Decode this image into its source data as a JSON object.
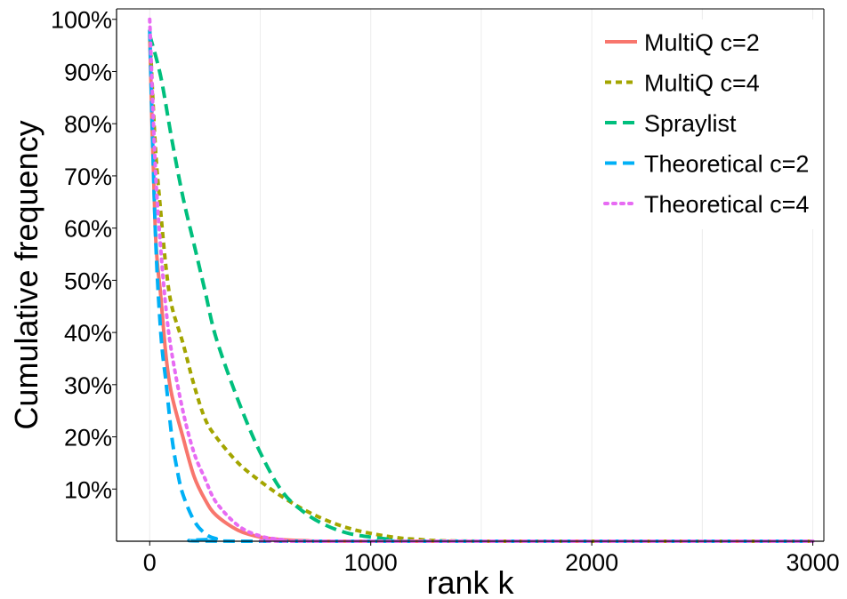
{
  "chart_data": {
    "type": "line",
    "title": "",
    "xlabel": "rank k",
    "ylabel": "Cumulative frequency",
    "xlim": [
      -150,
      3050
    ],
    "ylim": [
      0,
      1.02
    ],
    "xticks": [
      0,
      1000,
      2000,
      3000
    ],
    "xtick_labels": [
      "0",
      "1000",
      "2000",
      "3000"
    ],
    "yticks": [
      0.1,
      0.2,
      0.3,
      0.4,
      0.5,
      0.6,
      0.7,
      0.8,
      0.9,
      1.0
    ],
    "ytick_labels": [
      "10%",
      "20%",
      "30%",
      "40%",
      "50%",
      "60%",
      "70%",
      "80%",
      "90%",
      "100%"
    ],
    "grid": true,
    "legend_position": "top-right",
    "series": [
      {
        "name": "MultiQ c=2",
        "color": "#F8766D",
        "dash": "solid",
        "x": [
          0,
          25,
          50,
          75,
          100,
          150,
          200,
          250,
          300,
          400,
          500,
          600,
          700,
          1000,
          3000
        ],
        "y": [
          0.97,
          0.6,
          0.47,
          0.35,
          0.28,
          0.2,
          0.125,
          0.08,
          0.05,
          0.021,
          0.008,
          0.003,
          0.001,
          0.0,
          0.0
        ]
      },
      {
        "name": "MultiQ c=4",
        "color": "#A3A500",
        "dash": "dash-short",
        "x": [
          0,
          25,
          50,
          75,
          100,
          150,
          200,
          250,
          300,
          400,
          500,
          600,
          700,
          800,
          900,
          1000,
          1100,
          1200,
          1500,
          3000
        ],
        "y": [
          0.98,
          0.76,
          0.63,
          0.52,
          0.45,
          0.38,
          0.3,
          0.235,
          0.2,
          0.15,
          0.115,
          0.085,
          0.06,
          0.04,
          0.025,
          0.015,
          0.008,
          0.004,
          0.0,
          0.0
        ]
      },
      {
        "name": "Spraylist",
        "color": "#00BF7D",
        "dash": "dash-long",
        "x": [
          0,
          50,
          100,
          150,
          200,
          250,
          300,
          400,
          500,
          600,
          700,
          800,
          900,
          1000,
          1100,
          1200,
          3000
        ],
        "y": [
          0.97,
          0.89,
          0.77,
          0.66,
          0.57,
          0.48,
          0.39,
          0.27,
          0.17,
          0.095,
          0.055,
          0.03,
          0.015,
          0.008,
          0.003,
          0.0,
          0.0
        ]
      },
      {
        "name": "Theoretical c=2",
        "color": "#00B0F6",
        "dash": "dash-long",
        "x": [
          0,
          25,
          50,
          75,
          100,
          125,
          150,
          200,
          250,
          300,
          400,
          3000
        ],
        "y": [
          0.98,
          0.6,
          0.4,
          0.3,
          0.2,
          0.135,
          0.09,
          0.04,
          0.015,
          0.005,
          0.0,
          0.0
        ]
      },
      {
        "name": "Theoretical c=4",
        "color": "#E76BF3",
        "dash": "dotted",
        "x": [
          0,
          25,
          50,
          75,
          100,
          150,
          200,
          250,
          300,
          400,
          500,
          600,
          700,
          3000
        ],
        "y": [
          1.0,
          0.72,
          0.56,
          0.44,
          0.36,
          0.25,
          0.17,
          0.12,
          0.075,
          0.03,
          0.01,
          0.003,
          0.0,
          0.0
        ]
      }
    ]
  }
}
